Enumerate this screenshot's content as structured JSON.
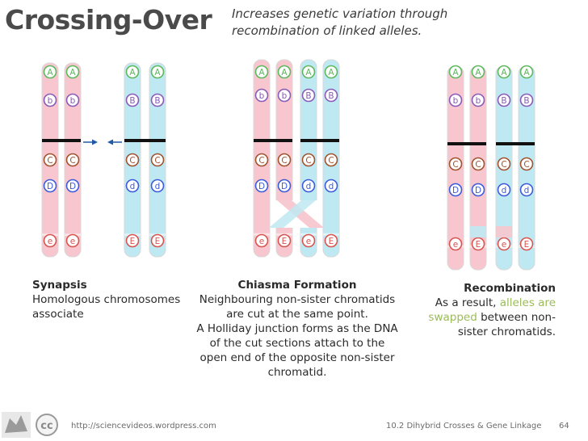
{
  "title": "Crossing-Over",
  "subtitle": {
    "line1": "Increases genetic variation through",
    "line2": "recombination of linked alleles."
  },
  "colors": {
    "pink": "#f7c6ce",
    "blue": "#bfe9f2",
    "green_allele": "#5cb85c",
    "purple_allele": "#8a5ab8",
    "brown_allele": "#a0522d",
    "blue_allele": "#3b5bdb",
    "red_allele": "#d9534f",
    "highlight_green": "#9bbb59"
  },
  "panels": {
    "synapsis": {
      "title": "Synapsis",
      "lines": [
        "Homologous chromosomes",
        "associate"
      ],
      "chromosomes": [
        {
          "color": "pink",
          "alleles": [
            "A",
            "b",
            "C",
            "D",
            "e"
          ]
        },
        {
          "color": "pink",
          "alleles": [
            "A",
            "b",
            "C",
            "D",
            "e"
          ]
        },
        {
          "color": "blue",
          "alleles": [
            "A",
            "B",
            "C",
            "d",
            "E"
          ]
        },
        {
          "color": "blue",
          "alleles": [
            "A",
            "B",
            "C",
            "d",
            "E"
          ]
        }
      ]
    },
    "chiasma": {
      "title": "Chiasma Formation",
      "lines": [
        "Neighbouring non-sister chromatids",
        "are cut at the same point.",
        "A Holliday junction forms as the DNA",
        "of the cut sections attach to the",
        "open end of the opposite non-sister",
        "chromatid."
      ],
      "chromosomes": [
        {
          "color": "pink",
          "alleles": [
            "A",
            "b",
            "C",
            "D",
            "e"
          ]
        },
        {
          "color": "pink",
          "alleles": [
            "A",
            "b",
            "C",
            "D",
            "E"
          ]
        },
        {
          "color": "blue",
          "alleles": [
            "A",
            "B",
            "C",
            "d",
            "e"
          ]
        },
        {
          "color": "blue",
          "alleles": [
            "A",
            "B",
            "C",
            "d",
            "E"
          ]
        }
      ]
    },
    "recombination": {
      "title": "Recombination",
      "line1_pre": "As a result,",
      "line1_green": "alleles are",
      "line2_green": "swapped",
      "line2_post": "between non-",
      "line3": "sister chromatids.",
      "chromosomes": [
        {
          "color": "pink",
          "alleles": [
            "A",
            "b",
            "C",
            "D",
            "e"
          ]
        },
        {
          "color": "pink",
          "alleles": [
            "A",
            "b",
            "C",
            "D",
            "E"
          ]
        },
        {
          "color": "blue",
          "alleles": [
            "A",
            "B",
            "C",
            "d",
            "e"
          ]
        },
        {
          "color": "blue",
          "alleles": [
            "A",
            "B",
            "C",
            "d",
            "E"
          ]
        }
      ]
    }
  },
  "footer": {
    "url": "http://sciencevideos.wordpress.com",
    "course": "10.2 Dihybrid Crosses & Gene Linkage",
    "page": "64",
    "cc_label": "cc"
  }
}
